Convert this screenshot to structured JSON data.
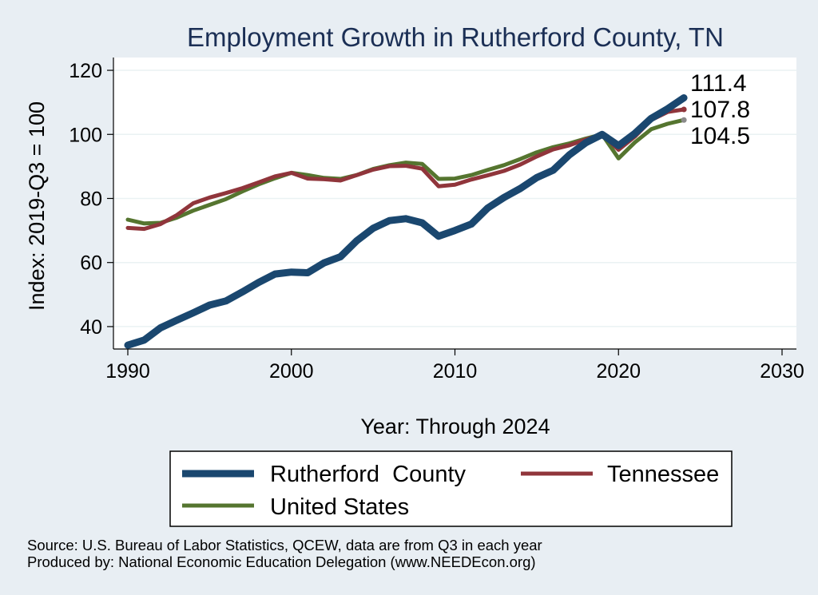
{
  "chart_data": {
    "type": "line",
    "title": "Employment Growth in Rutherford County, TN",
    "xlabel": "Year: Through 2024",
    "ylabel": "Index: 2019-Q3 = 100",
    "xlim": [
      1990,
      2030
    ],
    "ylim": [
      33,
      124
    ],
    "xticks": [
      1990,
      2000,
      2010,
      2020,
      2030
    ],
    "yticks": [
      40,
      60,
      80,
      100,
      120
    ],
    "grid": true,
    "legend_position": "bottom",
    "x": [
      1990,
      1991,
      1992,
      1993,
      1994,
      1995,
      1996,
      1997,
      1998,
      1999,
      2000,
      2001,
      2002,
      2003,
      2004,
      2005,
      2006,
      2007,
      2008,
      2009,
      2010,
      2011,
      2012,
      2013,
      2014,
      2015,
      2016,
      2017,
      2018,
      2019,
      2020,
      2021,
      2022,
      2023,
      2024
    ],
    "series": [
      {
        "name": "Rutherford  County",
        "color": "#1a476f",
        "end_label": "111.4",
        "values": [
          34.2,
          35.8,
          39.6,
          42.0,
          44.3,
          46.7,
          48.0,
          50.8,
          53.8,
          56.4,
          57.0,
          56.8,
          59.9,
          61.8,
          66.8,
          70.7,
          73.1,
          73.7,
          72.4,
          68.2,
          70.0,
          72.0,
          77.0,
          80.3,
          83.1,
          86.5,
          88.8,
          93.6,
          97.4,
          100.0,
          96.5,
          100.3,
          105.0,
          108.0,
          111.4
        ]
      },
      {
        "name": "Tennessee",
        "color": "#90353b",
        "end_label": "107.8",
        "values": [
          70.8,
          70.5,
          72.0,
          74.8,
          78.5,
          80.3,
          81.7,
          83.2,
          85.0,
          86.9,
          88.0,
          86.2,
          86.0,
          85.6,
          87.3,
          89.0,
          90.1,
          90.2,
          89.3,
          83.8,
          84.3,
          85.9,
          87.2,
          88.6,
          90.6,
          93.1,
          95.3,
          96.6,
          98.4,
          100.0,
          95.2,
          99.3,
          104.5,
          107.0,
          107.8
        ]
      },
      {
        "name": "United States",
        "color": "#55752f",
        "end_label": "104.5",
        "values": [
          73.4,
          72.2,
          72.4,
          74.0,
          76.2,
          78.0,
          79.8,
          82.2,
          84.4,
          86.3,
          88.0,
          87.3,
          86.4,
          86.1,
          87.3,
          89.2,
          90.4,
          91.2,
          90.8,
          86.1,
          86.2,
          87.3,
          88.9,
          90.4,
          92.3,
          94.4,
          96.0,
          97.2,
          98.7,
          100.0,
          92.5,
          97.5,
          101.6,
          103.3,
          104.5
        ]
      }
    ]
  },
  "footer": {
    "source": "Source: U.S. Bureau of Labor Statistics, QCEW, data are from Q3 in each year",
    "produced_by": "Produced by: National Economic Education Delegation (www.NEEDEcon.org)"
  }
}
